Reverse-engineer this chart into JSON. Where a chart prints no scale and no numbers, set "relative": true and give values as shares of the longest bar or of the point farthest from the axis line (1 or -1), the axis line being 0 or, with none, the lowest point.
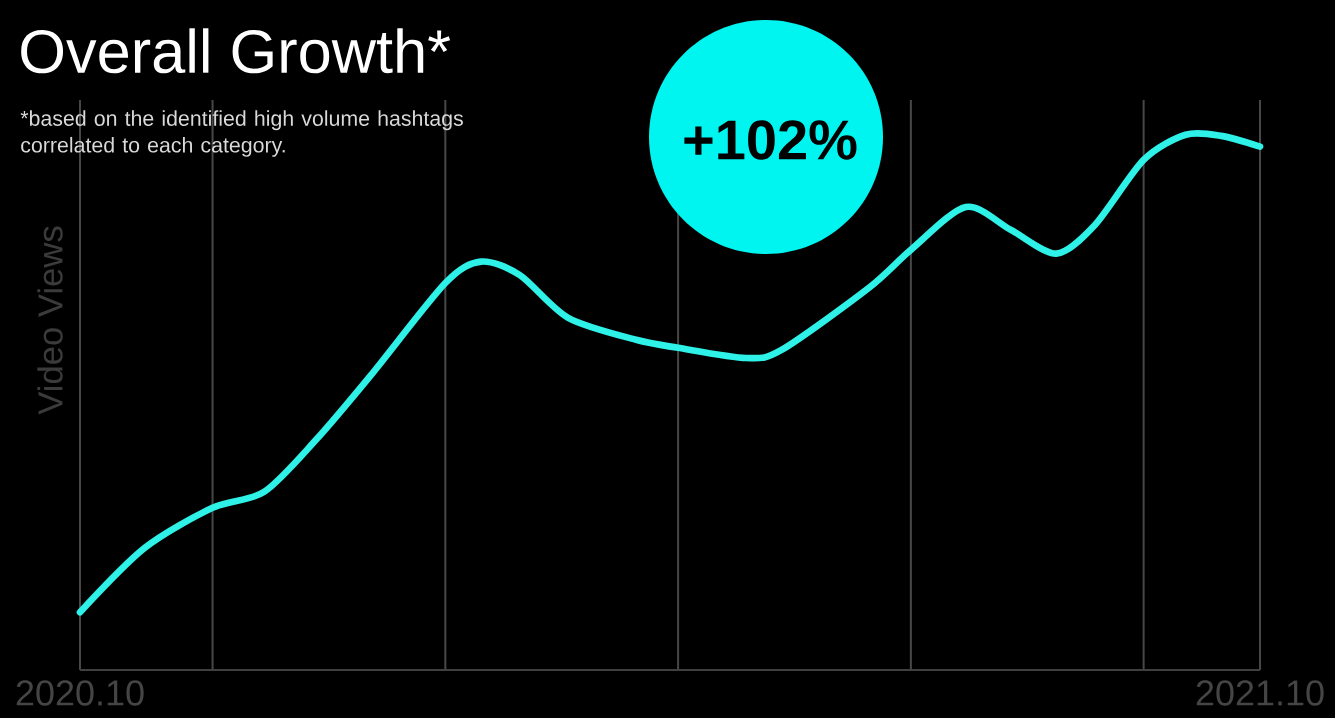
{
  "chart_data": {
    "type": "line",
    "title": "Overall Growth*",
    "subtitle": "*based on the identified high volume hashtags correlated to each category.",
    "ylabel": "Video Views",
    "annotations": [
      "+102%"
    ],
    "relative": true,
    "x": [
      "2020-10-01",
      "2020-10-21",
      "2020-11-11",
      "2020-11-27",
      "2020-12-13",
      "2020-12-30",
      "2021-01-22",
      "2021-02-02",
      "2021-02-14",
      "2021-03-01",
      "2021-03-22",
      "2021-04-04",
      "2021-04-25",
      "2021-05-06",
      "2021-06-02",
      "2021-06-15",
      "2021-07-02",
      "2021-07-16",
      "2021-07-30",
      "2021-08-11",
      "2021-08-26",
      "2021-09-08",
      "2021-09-19",
      "2021-10-01"
    ],
    "values": [
      0.108,
      0.228,
      0.303,
      0.333,
      0.43,
      0.551,
      0.723,
      0.763,
      0.738,
      0.658,
      0.617,
      0.602,
      0.583,
      0.598,
      0.714,
      0.785,
      0.865,
      0.822,
      0.778,
      0.832,
      0.953,
      1.0,
      0.998,
      0.978
    ],
    "color": "#2ef2e8",
    "xlim": [
      "2020-10",
      "2021-10"
    ],
    "xticks": [
      {
        "value": "2020-10",
        "label": "2020.10"
      },
      {
        "value": "2020-11-11",
        "label": null
      },
      {
        "value": "2021-01-22",
        "label": null
      },
      {
        "value": "2021-04-04",
        "label": null
      },
      {
        "value": "2021-06-15",
        "label": null
      },
      {
        "value": "2021-08-26",
        "label": null
      },
      {
        "value": "2021-10",
        "label": "2021.10"
      }
    ],
    "grid": "x"
  }
}
